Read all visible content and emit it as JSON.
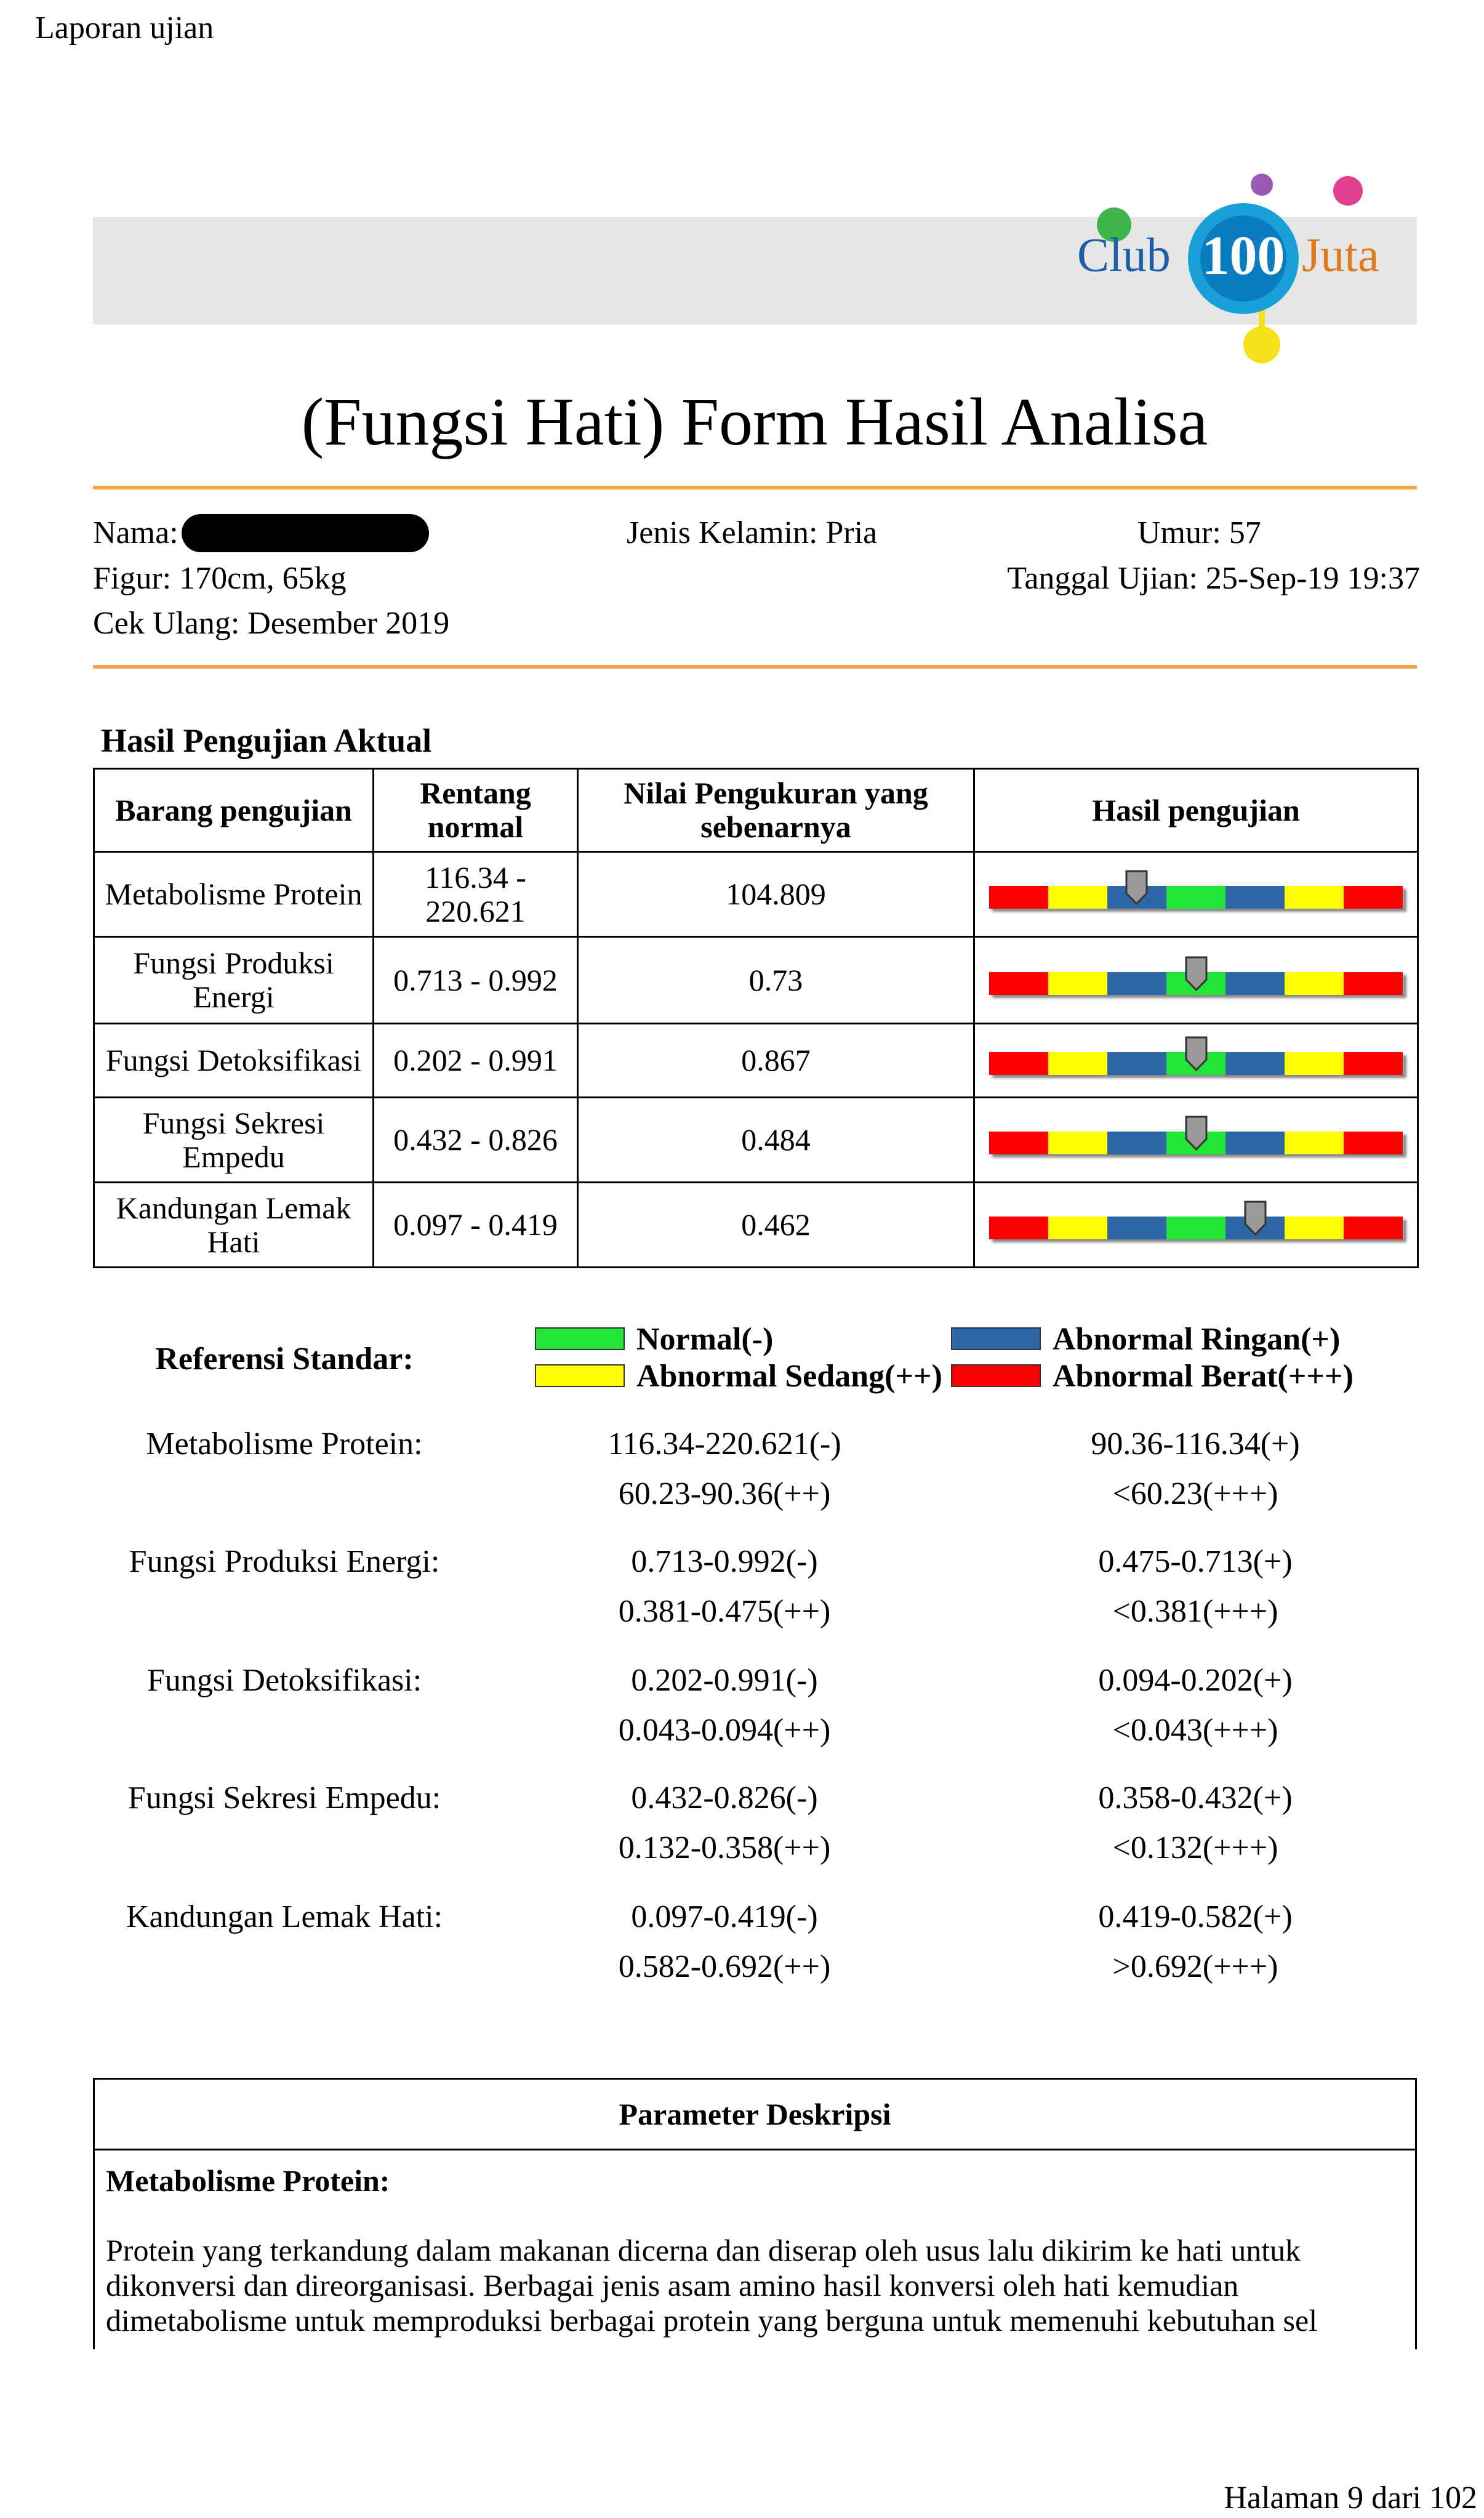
{
  "header": {
    "page_label": "Laporan ujian",
    "logo": {
      "club": "Club",
      "number": "100",
      "juta": "Juta"
    }
  },
  "title": "(Fungsi Hati) Form Hasil Analisa",
  "info": {
    "nama": "Nama:",
    "jenis_kelamin": "Jenis Kelamin: Pria",
    "umur": "Umur: 57",
    "figur": "Figur: 170cm, 65kg",
    "tanggal": "Tanggal Ujian: 25-Sep-19 19:37",
    "cek_ulang": "Cek Ulang: Desember 2019"
  },
  "results": {
    "title": "Hasil Pengujian Aktual",
    "columns": [
      "Barang pengujian",
      "Rentang normal",
      "Nilai Pengukuran yang sebenarnya",
      "Hasil pengujian"
    ],
    "rows": [
      [
        "Metabolisme Protein",
        "116.34 - 220.621",
        "104.809"
      ],
      [
        "Fungsi Produksi Energi",
        "0.713 - 0.992",
        "0.73"
      ],
      [
        "Fungsi Detoksifikasi",
        "0.202 - 0.991",
        "0.867"
      ],
      [
        "Fungsi Sekresi Empedu",
        "0.432 - 0.826",
        "0.484"
      ],
      [
        "Kandungan Lemak Hati",
        "0.097 - 0.419",
        "0.462"
      ]
    ]
  },
  "reference": {
    "title": "Referensi Standar:",
    "legend": [
      {
        "label": "Normal(-)",
        "color": "#22e635"
      },
      {
        "label": "Abnormal Ringan(+)",
        "color": "#2e67a8"
      },
      {
        "label": "Abnormal Sedang(++)",
        "color": "#ffff00"
      },
      {
        "label": "Abnormal Berat(+++)",
        "color": "#ff0000"
      }
    ],
    "rows": [
      {
        "label": "Metabolisme Protein:",
        "values": [
          "116.34-220.621(-)",
          "90.36-116.34(+)",
          "60.23-90.36(++)",
          "<60.23(+++)"
        ]
      },
      {
        "label": "Fungsi Produksi Energi:",
        "values": [
          "0.713-0.992(-)",
          "0.475-0.713(+)",
          "0.381-0.475(++)",
          "<0.381(+++)"
        ]
      },
      {
        "label": "Fungsi Detoksifikasi:",
        "values": [
          "0.202-0.991(-)",
          "0.094-0.202(+)",
          "0.043-0.094(++)",
          "<0.043(+++)"
        ]
      },
      {
        "label": "Fungsi Sekresi Empedu:",
        "values": [
          "0.432-0.826(-)",
          "0.358-0.432(+)",
          "0.132-0.358(++)",
          "<0.132(+++)"
        ]
      },
      {
        "label": "Kandungan Lemak Hati:",
        "values": [
          "0.097-0.419(-)",
          "0.419-0.582(+)",
          "0.582-0.692(++)",
          ">0.692(+++)"
        ]
      }
    ]
  },
  "description": {
    "title": "Parameter Deskripsi",
    "items": [
      {
        "name": "Metabolisme Protein:",
        "text": "Protein yang terkandung dalam makanan dicerna dan diserap oleh usus lalu dikirim ke hati untuk dikonversi dan direorganisasi. Berbagai jenis asam amino hasil konversi oleh hati kemudian dimetabolisme untuk memproduksi berbagai protein yang berguna untuk memenuhi kebutuhan sel"
      }
    ]
  },
  "footer": {
    "page": "Halaman 9 dari 102"
  }
}
